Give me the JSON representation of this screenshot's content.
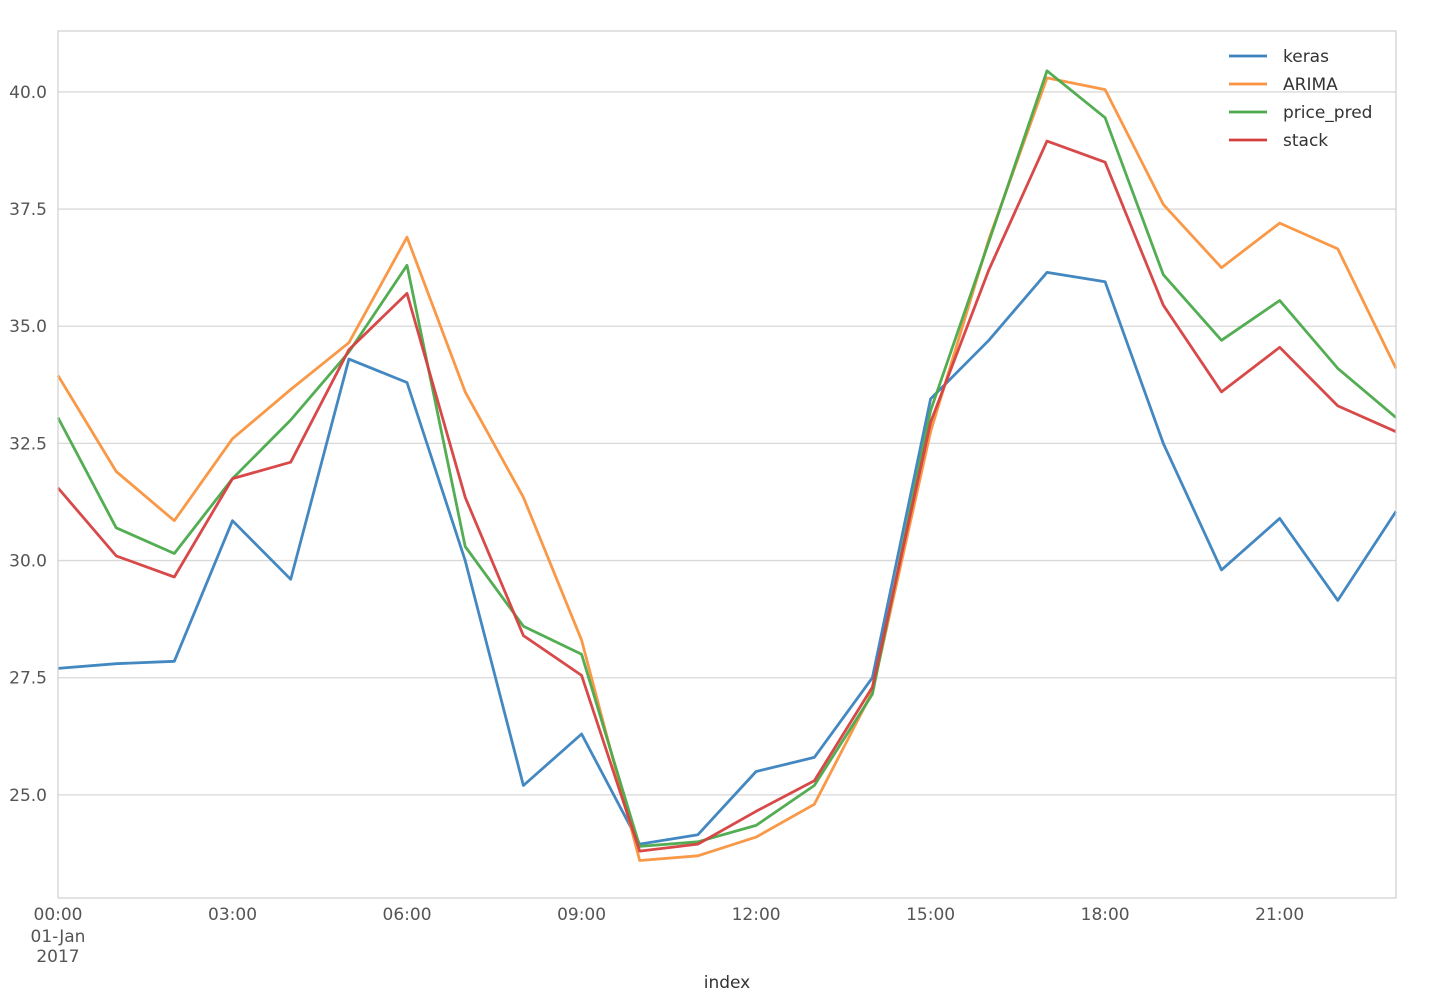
{
  "chart_data": {
    "type": "line",
    "title": "",
    "xlabel": "index",
    "ylabel": "",
    "x": [
      "00:00",
      "01:00",
      "02:00",
      "03:00",
      "04:00",
      "05:00",
      "06:00",
      "07:00",
      "08:00",
      "09:00",
      "10:00",
      "11:00",
      "12:00",
      "13:00",
      "14:00",
      "15:00",
      "16:00",
      "17:00",
      "18:00",
      "19:00",
      "20:00",
      "21:00",
      "22:00",
      "23:00"
    ],
    "date": "01-Jan 2017",
    "x_tick_labels": [
      {
        "label": "00:00",
        "sub1": "01-Jan",
        "sub2": "2017",
        "index": 0
      },
      {
        "label": "03:00",
        "index": 3
      },
      {
        "label": "06:00",
        "index": 6
      },
      {
        "label": "09:00",
        "index": 9
      },
      {
        "label": "12:00",
        "index": 12
      },
      {
        "label": "15:00",
        "index": 15
      },
      {
        "label": "18:00",
        "index": 18
      },
      {
        "label": "21:00",
        "index": 21
      }
    ],
    "y_ticks": [
      "25.0",
      "27.5",
      "30.0",
      "32.5",
      "35.0",
      "37.5",
      "40.0"
    ],
    "ylim": [
      22.8,
      41.3
    ],
    "grid": true,
    "legend_position": "top-right",
    "series": [
      {
        "name": "keras",
        "color": "#3a82be",
        "values": [
          27.7,
          27.8,
          27.85,
          30.85,
          29.6,
          34.3,
          33.8,
          30.0,
          25.2,
          26.3,
          23.95,
          24.15,
          25.5,
          25.8,
          27.5,
          33.45,
          34.7,
          36.15,
          35.95,
          32.5,
          29.8,
          30.9,
          29.15,
          31.05
        ]
      },
      {
        "name": "ARIMA",
        "color": "#f9933e",
        "values": [
          33.95,
          31.9,
          30.85,
          32.6,
          33.65,
          34.65,
          36.9,
          33.6,
          31.35,
          28.3,
          23.6,
          23.7,
          24.1,
          24.8,
          27.2,
          32.75,
          36.85,
          40.3,
          40.05,
          37.6,
          36.25,
          37.2,
          36.65,
          34.1
        ]
      },
      {
        "name": "price_pred",
        "color": "#4aa94a",
        "values": [
          33.05,
          30.7,
          30.15,
          31.75,
          33.0,
          34.45,
          36.3,
          30.3,
          28.6,
          28.0,
          23.9,
          24.0,
          24.35,
          25.2,
          27.15,
          33.2,
          36.8,
          40.45,
          39.45,
          36.1,
          34.7,
          35.55,
          34.1,
          33.05
        ]
      },
      {
        "name": "stack",
        "color": "#d63f3f",
        "values": [
          31.55,
          30.1,
          29.65,
          31.75,
          32.1,
          34.5,
          35.7,
          31.35,
          28.4,
          27.55,
          23.8,
          23.95,
          24.65,
          25.3,
          27.3,
          32.95,
          36.2,
          38.95,
          38.5,
          35.45,
          33.6,
          34.55,
          33.3,
          32.75
        ]
      }
    ]
  }
}
